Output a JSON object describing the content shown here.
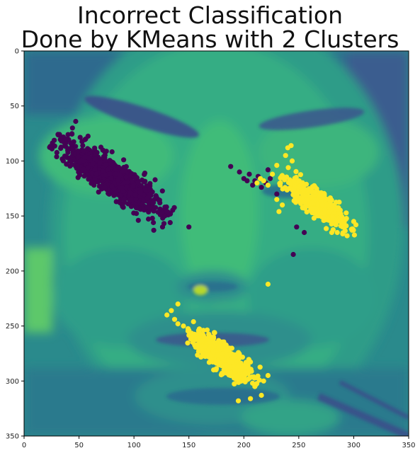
{
  "chart_data": {
    "type": "scatter",
    "title_lines": [
      "Incorrect Classification",
      "Done by KMeans with 2 Clusters"
    ],
    "xlabel": "",
    "ylabel": "",
    "xlim": [
      0,
      350
    ],
    "ylim": [
      350,
      0
    ],
    "y_inverted": true,
    "x_ticks": [
      0,
      50,
      100,
      150,
      200,
      250,
      300,
      350
    ],
    "y_ticks": [
      0,
      50,
      100,
      150,
      200,
      250,
      300,
      350
    ],
    "grid": false,
    "legend": "none",
    "background": "grayscale face photograph rendered with viridis colormap",
    "colors": {
      "cluster_0": "#440154",
      "cluster_1": "#fde725"
    },
    "series": [
      {
        "cluster": 0,
        "color": "#440154",
        "clusters": [
          {
            "cx": 80,
            "cy": 115,
            "sx": 50,
            "sy": 14,
            "angle": 33,
            "n": 900
          }
        ],
        "points": [
          [
            40,
            76
          ],
          [
            38,
            80
          ],
          [
            44,
            70
          ],
          [
            47,
            64
          ],
          [
            42,
            100
          ],
          [
            150,
            160
          ],
          [
            118,
            163
          ],
          [
            126,
            160
          ],
          [
            133,
            156
          ],
          [
            130,
            146
          ],
          [
            128,
            150
          ],
          [
            188,
            105
          ],
          [
            196,
            110
          ],
          [
            200,
            116
          ],
          [
            203,
            118
          ],
          [
            205,
            112
          ],
          [
            210,
            118
          ],
          [
            208,
            122
          ],
          [
            213,
            114
          ],
          [
            216,
            124
          ],
          [
            220,
            120
          ],
          [
            222,
            108
          ],
          [
            224,
            116
          ],
          [
            230,
            130
          ],
          [
            248,
            160
          ],
          [
            255,
            165
          ],
          [
            245,
            185
          ]
        ]
      },
      {
        "cluster": 1,
        "color": "#fde725",
        "clusters": [
          {
            "cx": 268,
            "cy": 140,
            "sx": 34,
            "sy": 10,
            "angle": 37,
            "n": 450
          },
          {
            "cx": 180,
            "cy": 278,
            "sx": 32,
            "sy": 10,
            "angle": 38,
            "n": 560
          }
        ],
        "points": [
          [
            240,
            88
          ],
          [
            243,
            86
          ],
          [
            238,
            95
          ],
          [
            244,
            100
          ],
          [
            230,
            104
          ],
          [
            226,
            112
          ],
          [
            212,
            120
          ],
          [
            215,
            116
          ],
          [
            218,
            118
          ],
          [
            222,
            122
          ],
          [
            230,
            135
          ],
          [
            235,
            140
          ],
          [
            232,
            146
          ],
          [
            140,
            230
          ],
          [
            134,
            236
          ],
          [
            130,
            240
          ],
          [
            137,
            244
          ],
          [
            140,
            248
          ],
          [
            145,
            250
          ],
          [
            150,
            254
          ],
          [
            212,
            297
          ],
          [
            210,
            305
          ],
          [
            218,
            300
          ],
          [
            222,
            295
          ],
          [
            216,
            313
          ],
          [
            206,
            316
          ],
          [
            195,
            318
          ],
          [
            222,
            212
          ],
          [
            298,
            162
          ],
          [
            300,
            155
          ],
          [
            294,
            168
          ],
          [
            302,
            158
          ],
          [
            285,
            165
          ],
          [
            280,
            165
          ],
          [
            290,
            160
          ]
        ]
      }
    ]
  }
}
